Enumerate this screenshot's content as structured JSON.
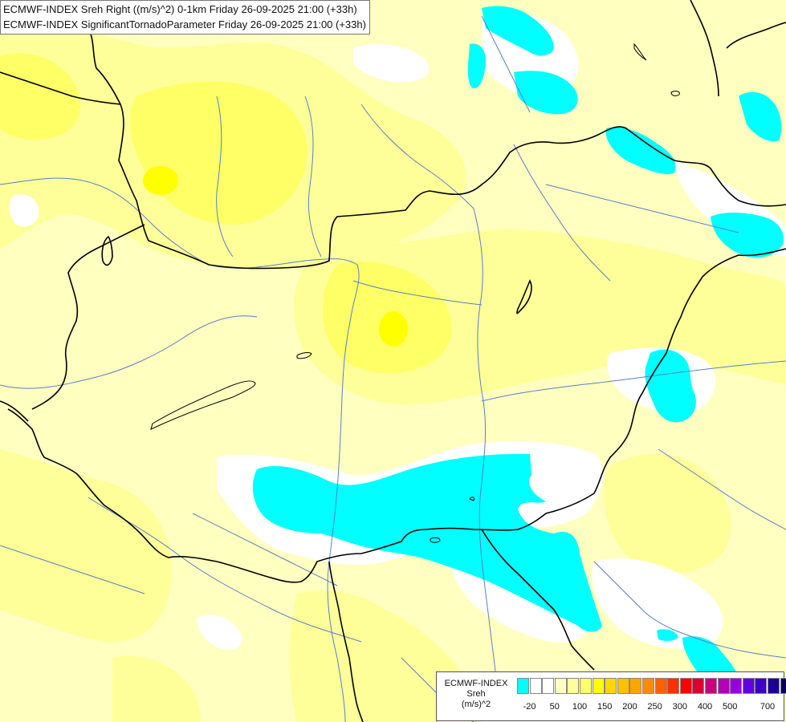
{
  "titles": {
    "line1": "ECMWF-INDEX Sreh Right ((m/s)^2) 0-1km Friday 26-09-2025 21:00 (+33h)",
    "line2": "ECMWF-INDEX SignificantTornadoParameter Friday 26-09-2025 21:00 (+33h)"
  },
  "legend": {
    "line1": "ECMWF-INDEX",
    "line2": "Sreh",
    "line3": "(m/s)^2",
    "colors": [
      "#00ffff",
      "#ffffff",
      "#ffffff",
      "#ffffc0",
      "#ffff99",
      "#ffff66",
      "#ffff00",
      "#ffd700",
      "#ffc000",
      "#ffa500",
      "#ff8c00",
      "#ff6000",
      "#ff3000",
      "#ff0000",
      "#dc0032",
      "#c8007d",
      "#b400b4",
      "#9600dc",
      "#6400e6",
      "#3c00c8",
      "#1e0096",
      "#0a0064"
    ],
    "ticks": [
      "-20",
      "50",
      "100",
      "150",
      "200",
      "250",
      "300",
      "400",
      "500",
      "700"
    ]
  },
  "palette": {
    "background_yellow": "#ffffc0",
    "yellow_2": "#ffff99",
    "yellow_3": "#ffff66",
    "yellow_4": "#ffff00",
    "cyan": "#00ffff",
    "white": "#ffffff",
    "border": "#000000",
    "river": "#5a7fc8"
  }
}
